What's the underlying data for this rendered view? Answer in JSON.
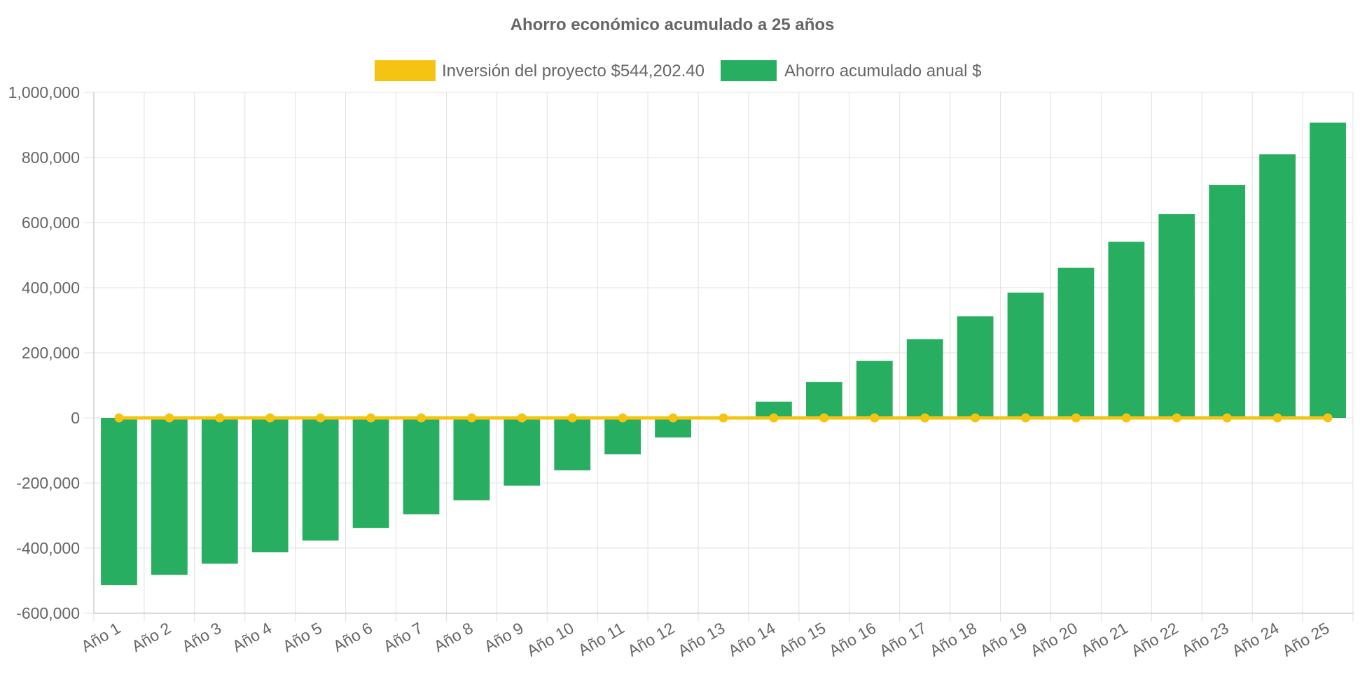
{
  "chart_data": {
    "type": "bar",
    "title": "Ahorro económico acumulado a 25 años",
    "categories": [
      "Año 1",
      "Año 2",
      "Año 3",
      "Año 4",
      "Año 5",
      "Año 6",
      "Año 7",
      "Año 8",
      "Año 9",
      "Año 10",
      "Año 11",
      "Año 12",
      "Año 13",
      "Año 14",
      "Año 15",
      "Año 16",
      "Año 17",
      "Año 18",
      "Año 19",
      "Año 20",
      "Año 21",
      "Año 22",
      "Año 23",
      "Año 24",
      "Año 25"
    ],
    "series": [
      {
        "name": "Inversión del proyecto $544,202.40",
        "type": "line",
        "color": "#f5c413",
        "values": [
          0,
          0,
          0,
          0,
          0,
          0,
          0,
          0,
          0,
          0,
          0,
          0,
          0,
          0,
          0,
          0,
          0,
          0,
          0,
          0,
          0,
          0,
          0,
          0,
          0
        ]
      },
      {
        "name": "Ahorro acumulado anual $",
        "type": "bar",
        "color": "#27ae60",
        "values": [
          -514000,
          -482000,
          -448000,
          -413000,
          -377000,
          -338000,
          -296000,
          -253000,
          -208000,
          -161000,
          -112000,
          -60000,
          0,
          50000,
          110000,
          175000,
          242000,
          312000,
          385000,
          461000,
          541000,
          626000,
          716000,
          810000,
          907000
        ]
      }
    ],
    "ylim": [
      -600000,
      1000000
    ],
    "yticks": [
      "1,000,000",
      "800,000",
      "600,000",
      "400,000",
      "200,000",
      "0",
      "-200,000",
      "-400,000",
      "-600,000"
    ],
    "ytick_values": [
      1000000,
      800000,
      600000,
      400000,
      200000,
      0,
      -200000,
      -400000,
      -600000
    ],
    "grid": true,
    "legend_position": "top-center"
  }
}
